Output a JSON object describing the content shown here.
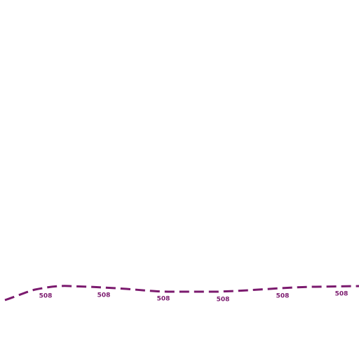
{
  "route": {
    "labels": [
      "508",
      "508",
      "508",
      "508",
      "508",
      "508"
    ]
  }
}
